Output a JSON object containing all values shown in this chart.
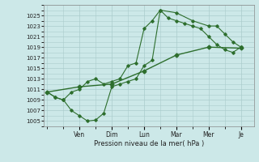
{
  "background_color": "#cce8e8",
  "grid_color": "#aacccc",
  "line_color": "#2d6e2d",
  "marker_color": "#2d6e2d",
  "xlabel": "Pression niveau de la mer( hPa )",
  "ylim": [
    1004,
    1027
  ],
  "yticks": [
    1005,
    1007,
    1009,
    1011,
    1013,
    1015,
    1017,
    1019,
    1021,
    1023,
    1025
  ],
  "day_labels": [
    "Ven",
    "Dim",
    "Lun",
    "Mar",
    "Mer",
    "Je"
  ],
  "day_positions": [
    2.0,
    4.0,
    6.0,
    8.0,
    10.0,
    12.0
  ],
  "xlim": [
    -0.2,
    12.8
  ],
  "series1_x": [
    0,
    0.5,
    1.0,
    1.5,
    2.0,
    2.5,
    3.0,
    3.5,
    4.0,
    4.5,
    5.0,
    5.5,
    6.0,
    6.5,
    7.0,
    7.5,
    8.0,
    8.5,
    9.0,
    9.5,
    10.0,
    10.5,
    11.0,
    11.5,
    12.0
  ],
  "series1_y": [
    1010.5,
    1009.5,
    1009.0,
    1010.5,
    1011.0,
    1012.5,
    1013.0,
    1012.0,
    1012.5,
    1013.0,
    1015.5,
    1016.0,
    1022.5,
    1024.0,
    1026.0,
    1024.5,
    1024.0,
    1023.5,
    1023.0,
    1022.5,
    1021.0,
    1019.5,
    1018.5,
    1018.0,
    1019.0
  ],
  "series2_x": [
    0,
    0.5,
    1.0,
    1.5,
    2.0,
    2.5,
    3.0,
    3.5,
    4.0,
    4.5,
    5.0,
    5.5,
    6.0,
    6.5,
    7.0,
    8.0,
    9.0,
    10.0,
    10.5,
    11.0,
    11.5,
    12.0
  ],
  "series2_y": [
    1010.5,
    1009.5,
    1009.0,
    1007.0,
    1006.0,
    1005.0,
    1005.2,
    1006.5,
    1011.5,
    1012.0,
    1012.5,
    1013.0,
    1015.5,
    1016.5,
    1026.0,
    1025.5,
    1024.0,
    1023.0,
    1023.0,
    1021.5,
    1020.0,
    1019.0
  ],
  "series3_x": [
    0,
    2.0,
    4.0,
    6.0,
    8.0,
    10.0,
    12.0
  ],
  "series3_y": [
    1010.5,
    1011.5,
    1012.0,
    1014.5,
    1017.5,
    1019.0,
    1018.8
  ]
}
